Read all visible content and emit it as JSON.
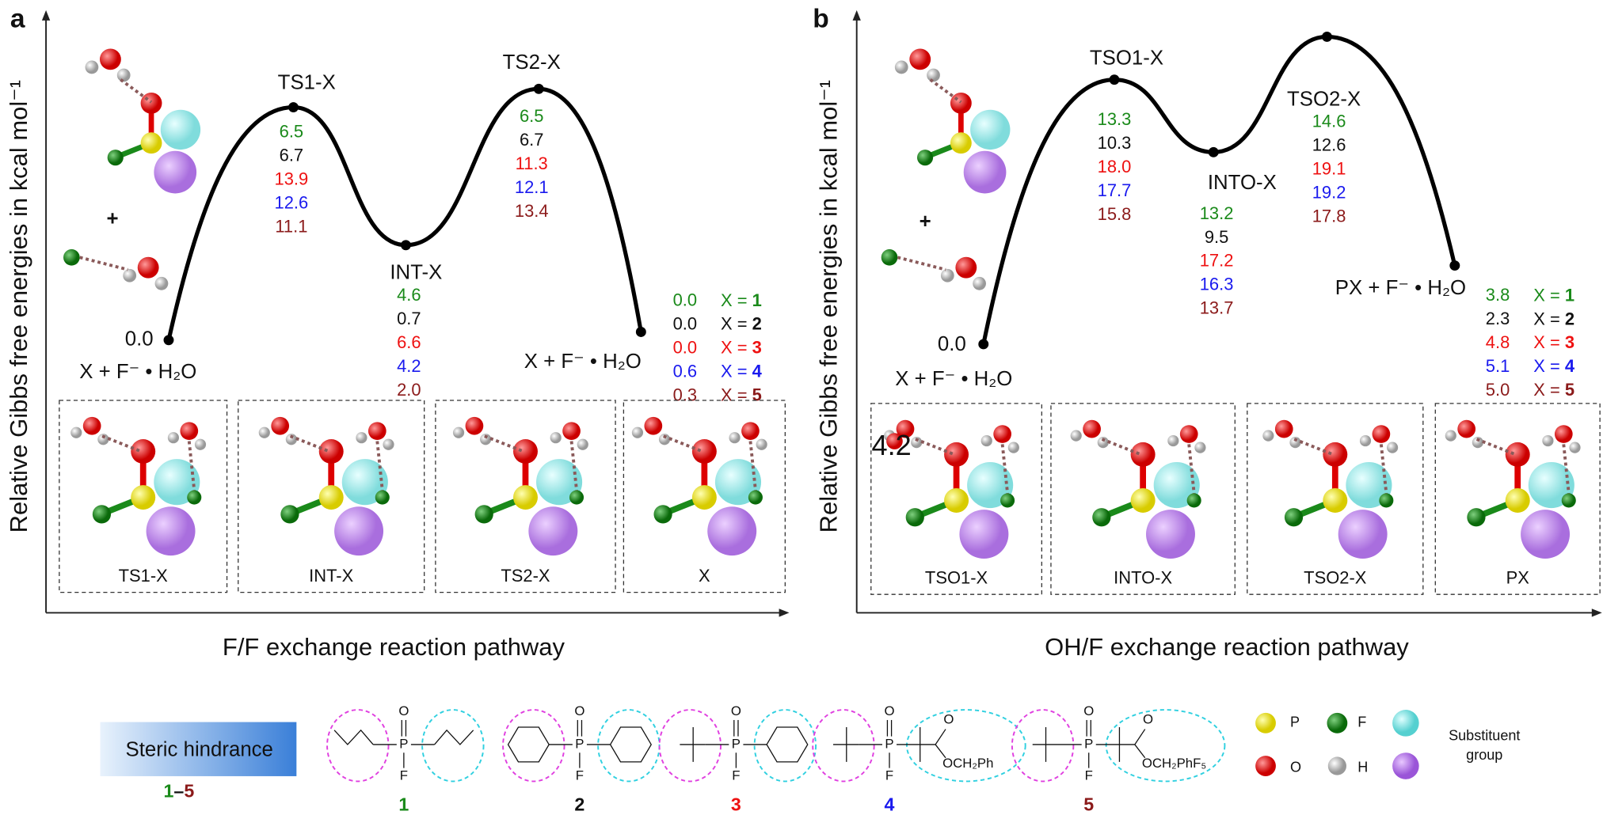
{
  "panels": [
    {
      "letter": "a",
      "y_axis_label": "Relative Gibbs free energies in kcal mol⁻¹",
      "x_axis_label": "F/F exchange reaction pathway",
      "plus": "+",
      "start": {
        "energy": "0.0",
        "label": "X + F⁻ • H₂O"
      },
      "states": [
        {
          "label": "TS1-X",
          "energies": [
            "6.5",
            "6.7",
            "13.9",
            "12.6",
            "11.1"
          ]
        },
        {
          "label": "INT-X",
          "energies": [
            "4.6",
            "0.7",
            "6.6",
            "4.2",
            "2.0"
          ]
        },
        {
          "label": "TS2-X",
          "energies": [
            "6.5",
            "6.7",
            "11.3",
            "12.1",
            "13.4"
          ]
        },
        {
          "label": "X + F⁻ • H₂O",
          "energies": [
            "0.0",
            "0.0",
            "0.0",
            "0.6",
            "0.3"
          ]
        }
      ],
      "boxes": [
        "TS1-X",
        "INT-X",
        "TS2-X",
        "X"
      ]
    },
    {
      "letter": "b",
      "y_axis_label": "Relative Gibbs free energies in kcal mol⁻¹",
      "x_axis_label": "OH/F exchange reaction pathway",
      "plus": "+",
      "start": {
        "energy": "0.0",
        "label": "X + F⁻ • H₂O"
      },
      "states": [
        {
          "label": "TSO1-X",
          "energies": [
            "13.3",
            "10.3",
            "18.0",
            "17.7",
            "15.8"
          ]
        },
        {
          "label": "INTO-X",
          "energies": [
            "13.2",
            "9.5",
            "17.2",
            "16.3",
            "13.7"
          ]
        },
        {
          "label": "TSO2-X",
          "energies": [
            "14.6",
            "12.6",
            "19.1",
            "19.2",
            "17.8"
          ]
        },
        {
          "label": "PX + F⁻ • H₂O",
          "energies": [
            "3.8",
            "2.3",
            "4.8",
            "5.1",
            "5.0"
          ]
        }
      ],
      "boxes": [
        "TSO1-X",
        "INTO-X",
        "TSO2-X",
        "PX"
      ],
      "stray_label": "4.2"
    }
  ],
  "legend_prefix": "X = ",
  "compounds": [
    "1",
    "2",
    "3",
    "4",
    "5"
  ],
  "compound_colors": [
    "#1a8a1a",
    "#111111",
    "#ee1111",
    "#1a1aee",
    "#8b1a1a"
  ],
  "steric": {
    "label": "Steric hindrance",
    "range_start": "1",
    "range_dash": "–",
    "range_end": "5"
  },
  "structures": {
    "oxygen": "O",
    "phosphorus": "P",
    "fluorine": "F",
    "ester_4": "OCH₂Ph",
    "ester_5": "OCH₂PhF₅"
  },
  "atom_legend": {
    "P": "P",
    "F": "F",
    "O": "O",
    "H": "H",
    "substituent": [
      "Substituent",
      "group"
    ]
  }
}
